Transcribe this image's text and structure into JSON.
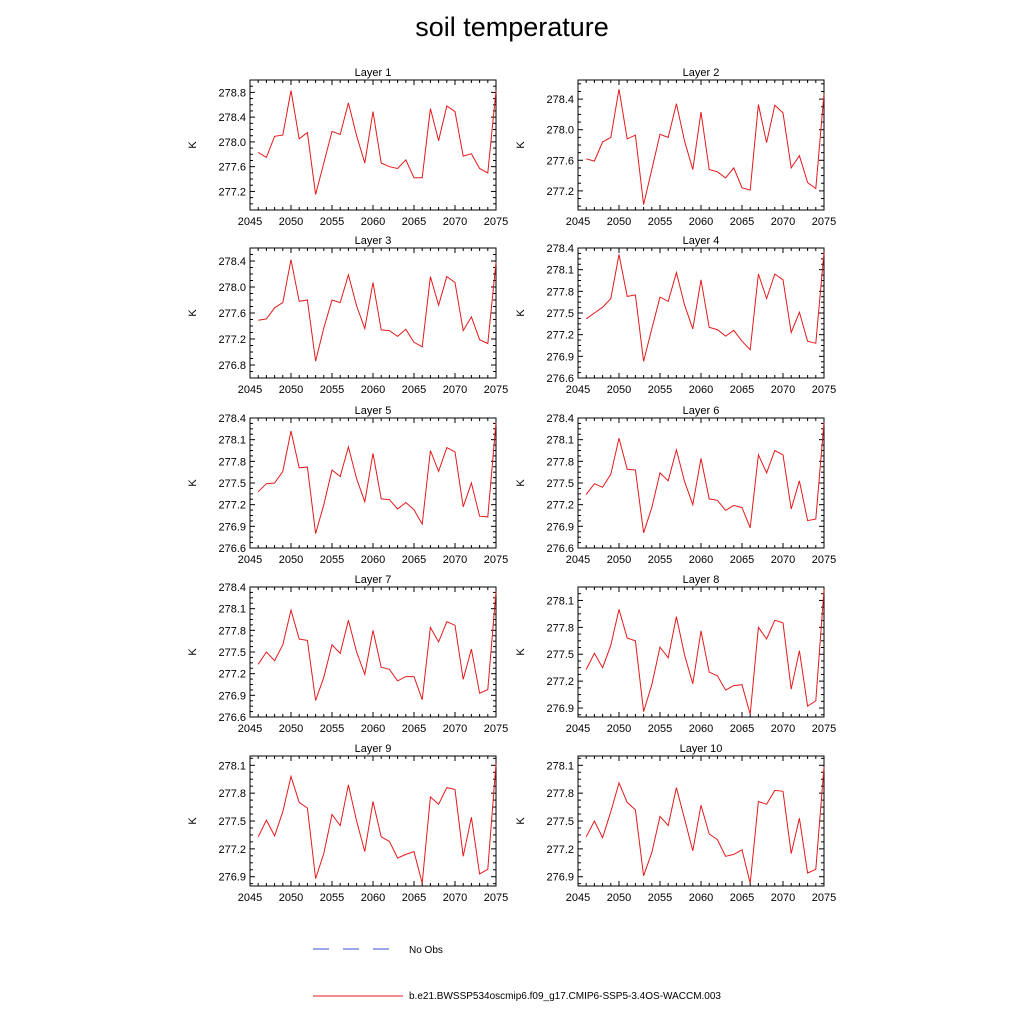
{
  "page": {
    "title": "soil temperature"
  },
  "legend": {
    "entries": [
      {
        "label": "No Obs",
        "color": "#3b4fd6",
        "style": "dashed"
      },
      {
        "label": "b.e21.BWSSP534oscmip6.f09_g17.CMIP6-SSP5-3.4OS-WACCM.003",
        "color": "#e31a1c",
        "style": "solid"
      }
    ]
  },
  "chart_data": [
    {
      "type": "line",
      "title": "Layer 1",
      "xlabel": "",
      "ylabel": "K",
      "xlim": [
        2045,
        2075
      ],
      "ylim": [
        276.9,
        279.0
      ],
      "xticks": [
        2045,
        2050,
        2055,
        2060,
        2065,
        2070,
        2075
      ],
      "yticks": [
        "277.2",
        "277.6",
        "278.0",
        "278.4",
        "278.8"
      ],
      "series": [
        {
          "color": "#e31a1c",
          "x": [
            2046,
            2047,
            2048,
            2049,
            2050,
            2051,
            2052,
            2053,
            2054,
            2055,
            2056,
            2057,
            2058,
            2059,
            2060,
            2061,
            2062,
            2063,
            2064,
            2065,
            2066,
            2067,
            2068,
            2069,
            2070,
            2071,
            2072,
            2073,
            2074,
            2075
          ],
          "values": [
            277.83,
            277.75,
            278.09,
            278.11,
            278.83,
            278.05,
            278.15,
            277.15,
            277.66,
            278.17,
            278.12,
            278.63,
            278.1,
            277.66,
            278.49,
            277.66,
            277.6,
            277.57,
            277.71,
            277.42,
            277.42,
            278.54,
            278.02,
            278.58,
            278.49,
            277.77,
            277.81,
            277.57,
            277.5,
            278.83
          ]
        }
      ]
    },
    {
      "type": "line",
      "title": "Layer 2",
      "xlabel": "",
      "ylabel": "K",
      "xlim": [
        2045,
        2075
      ],
      "ylim": [
        276.95,
        278.65
      ],
      "xticks": [
        2045,
        2050,
        2055,
        2060,
        2065,
        2070,
        2075
      ],
      "yticks": [
        "277.2",
        "277.6",
        "278.0",
        "278.4"
      ],
      "series": [
        {
          "color": "#e31a1c",
          "x": [
            2046,
            2047,
            2048,
            2049,
            2050,
            2051,
            2052,
            2053,
            2054,
            2055,
            2056,
            2057,
            2058,
            2059,
            2060,
            2061,
            2062,
            2063,
            2064,
            2065,
            2066,
            2067,
            2068,
            2069,
            2070,
            2071,
            2072,
            2073,
            2074,
            2075
          ],
          "values": [
            277.62,
            277.59,
            277.84,
            277.9,
            278.53,
            277.88,
            277.93,
            277.02,
            277.48,
            277.94,
            277.9,
            278.34,
            277.85,
            277.48,
            278.23,
            277.48,
            277.45,
            277.37,
            277.5,
            277.24,
            277.21,
            278.33,
            277.83,
            278.32,
            278.22,
            277.5,
            277.66,
            277.31,
            277.23,
            278.47
          ]
        }
      ]
    },
    {
      "type": "line",
      "title": "Layer 3",
      "xlabel": "",
      "ylabel": "K",
      "xlim": [
        2045,
        2075
      ],
      "ylim": [
        276.6,
        278.6
      ],
      "xticks": [
        2045,
        2050,
        2055,
        2060,
        2065,
        2070,
        2075
      ],
      "yticks": [
        "276.8",
        "277.2",
        "277.6",
        "278.0",
        "278.4"
      ],
      "series": [
        {
          "color": "#e31a1c",
          "x": [
            2046,
            2047,
            2048,
            2049,
            2050,
            2051,
            2052,
            2053,
            2054,
            2055,
            2056,
            2057,
            2058,
            2059,
            2060,
            2061,
            2062,
            2063,
            2064,
            2065,
            2066,
            2067,
            2068,
            2069,
            2070,
            2071,
            2072,
            2073,
            2074,
            2075
          ],
          "values": [
            277.49,
            277.51,
            277.68,
            277.76,
            278.42,
            277.78,
            277.8,
            276.86,
            277.37,
            277.8,
            277.76,
            278.19,
            277.71,
            277.36,
            278.07,
            277.34,
            277.33,
            277.24,
            277.35,
            277.15,
            277.08,
            278.16,
            277.72,
            278.16,
            278.07,
            277.33,
            277.54,
            277.19,
            277.13,
            278.38
          ]
        }
      ]
    },
    {
      "type": "line",
      "title": "Layer 4",
      "xlabel": "",
      "ylabel": "K",
      "xlim": [
        2045,
        2075
      ],
      "ylim": [
        276.6,
        278.4
      ],
      "xticks": [
        2045,
        2050,
        2055,
        2060,
        2065,
        2070,
        2075
      ],
      "yticks": [
        "276.6",
        "276.9",
        "277.2",
        "277.5",
        "277.8",
        "278.1",
        "278.4"
      ],
      "series": [
        {
          "color": "#e31a1c",
          "x": [
            2046,
            2047,
            2048,
            2049,
            2050,
            2051,
            2052,
            2053,
            2054,
            2055,
            2056,
            2057,
            2058,
            2059,
            2060,
            2061,
            2062,
            2063,
            2064,
            2065,
            2066,
            2067,
            2068,
            2069,
            2070,
            2071,
            2072,
            2073,
            2074,
            2075
          ],
          "values": [
            277.42,
            277.5,
            277.58,
            277.7,
            278.31,
            277.73,
            277.75,
            276.83,
            277.28,
            277.72,
            277.66,
            278.06,
            277.61,
            277.28,
            277.96,
            277.3,
            277.27,
            277.18,
            277.26,
            277.11,
            276.99,
            278.04,
            277.7,
            278.04,
            277.96,
            277.23,
            277.51,
            277.11,
            277.08,
            278.34
          ]
        }
      ]
    },
    {
      "type": "line",
      "title": "Layer 5",
      "xlabel": "",
      "ylabel": "K",
      "xlim": [
        2045,
        2075
      ],
      "ylim": [
        276.6,
        278.4
      ],
      "xticks": [
        2045,
        2050,
        2055,
        2060,
        2065,
        2070,
        2075
      ],
      "yticks": [
        "276.6",
        "276.9",
        "277.2",
        "277.5",
        "277.8",
        "278.1",
        "278.4"
      ],
      "series": [
        {
          "color": "#e31a1c",
          "x": [
            2046,
            2047,
            2048,
            2049,
            2050,
            2051,
            2052,
            2053,
            2054,
            2055,
            2056,
            2057,
            2058,
            2059,
            2060,
            2061,
            2062,
            2063,
            2064,
            2065,
            2066,
            2067,
            2068,
            2069,
            2070,
            2071,
            2072,
            2073,
            2074,
            2075
          ],
          "values": [
            277.38,
            277.49,
            277.5,
            277.66,
            278.22,
            277.71,
            277.72,
            276.8,
            277.2,
            277.68,
            277.59,
            278.0,
            277.56,
            277.24,
            277.91,
            277.28,
            277.27,
            277.14,
            277.23,
            277.13,
            276.93,
            277.95,
            277.66,
            277.99,
            277.93,
            277.17,
            277.5,
            277.04,
            277.03,
            278.34
          ]
        }
      ]
    },
    {
      "type": "line",
      "title": "Layer 6",
      "xlabel": "",
      "ylabel": "K",
      "xlim": [
        2045,
        2075
      ],
      "ylim": [
        276.6,
        278.4
      ],
      "xticks": [
        2045,
        2050,
        2055,
        2060,
        2065,
        2070,
        2075
      ],
      "yticks": [
        "276.6",
        "276.9",
        "277.2",
        "277.5",
        "277.8",
        "278.1",
        "278.4"
      ],
      "series": [
        {
          "color": "#e31a1c",
          "x": [
            2046,
            2047,
            2048,
            2049,
            2050,
            2051,
            2052,
            2053,
            2054,
            2055,
            2056,
            2057,
            2058,
            2059,
            2060,
            2061,
            2062,
            2063,
            2064,
            2065,
            2066,
            2067,
            2068,
            2069,
            2070,
            2071,
            2072,
            2073,
            2074,
            2075
          ],
          "values": [
            277.34,
            277.49,
            277.44,
            277.62,
            278.12,
            277.69,
            277.68,
            276.81,
            277.16,
            277.64,
            277.53,
            277.96,
            277.52,
            277.2,
            277.84,
            277.28,
            277.26,
            277.12,
            277.19,
            277.16,
            276.88,
            277.89,
            277.64,
            277.95,
            277.89,
            277.14,
            277.53,
            276.98,
            277.0,
            278.34
          ]
        }
      ]
    },
    {
      "type": "line",
      "title": "Layer 7",
      "xlabel": "",
      "ylabel": "K",
      "xlim": [
        2045,
        2075
      ],
      "ylim": [
        276.6,
        278.4
      ],
      "xticks": [
        2045,
        2050,
        2055,
        2060,
        2065,
        2070,
        2075
      ],
      "yticks": [
        "276.6",
        "276.9",
        "277.2",
        "277.5",
        "277.8",
        "278.1",
        "278.4"
      ],
      "series": [
        {
          "color": "#e31a1c",
          "x": [
            2046,
            2047,
            2048,
            2049,
            2050,
            2051,
            2052,
            2053,
            2054,
            2055,
            2056,
            2057,
            2058,
            2059,
            2060,
            2061,
            2062,
            2063,
            2064,
            2065,
            2066,
            2067,
            2068,
            2069,
            2070,
            2071,
            2072,
            2073,
            2074,
            2075
          ],
          "values": [
            277.33,
            277.5,
            277.38,
            277.6,
            278.08,
            277.68,
            277.66,
            276.83,
            277.15,
            277.6,
            277.48,
            277.94,
            277.5,
            277.19,
            277.8,
            277.29,
            277.26,
            277.1,
            277.16,
            277.16,
            276.84,
            277.84,
            277.64,
            277.92,
            277.87,
            277.12,
            277.54,
            276.93,
            276.98,
            278.34
          ]
        }
      ]
    },
    {
      "type": "line",
      "title": "Layer 8",
      "xlabel": "",
      "ylabel": "K",
      "xlim": [
        2045,
        2075
      ],
      "ylim": [
        276.8,
        278.25
      ],
      "xticks": [
        2045,
        2050,
        2055,
        2060,
        2065,
        2070,
        2075
      ],
      "yticks": [
        "276.9",
        "277.2",
        "277.5",
        "277.8",
        "278.1"
      ],
      "series": [
        {
          "color": "#e31a1c",
          "x": [
            2046,
            2047,
            2048,
            2049,
            2050,
            2051,
            2052,
            2053,
            2054,
            2055,
            2056,
            2057,
            2058,
            2059,
            2060,
            2061,
            2062,
            2063,
            2064,
            2065,
            2066,
            2067,
            2068,
            2069,
            2070,
            2071,
            2072,
            2073,
            2074,
            2075
          ],
          "values": [
            277.33,
            277.51,
            277.35,
            277.6,
            278.0,
            277.68,
            277.65,
            276.86,
            277.16,
            277.58,
            277.46,
            277.92,
            277.49,
            277.17,
            277.76,
            277.3,
            277.26,
            277.1,
            277.15,
            277.16,
            276.83,
            277.8,
            277.67,
            277.88,
            277.85,
            277.11,
            277.54,
            276.92,
            276.98,
            278.22
          ]
        }
      ]
    },
    {
      "type": "line",
      "title": "Layer 9",
      "xlabel": "",
      "ylabel": "K",
      "xlim": [
        2045,
        2075
      ],
      "ylim": [
        276.8,
        278.2
      ],
      "xticks": [
        2045,
        2050,
        2055,
        2060,
        2065,
        2070,
        2075
      ],
      "yticks": [
        "276.9",
        "277.2",
        "277.5",
        "277.8",
        "278.1"
      ],
      "series": [
        {
          "color": "#e31a1c",
          "x": [
            2046,
            2047,
            2048,
            2049,
            2050,
            2051,
            2052,
            2053,
            2054,
            2055,
            2056,
            2057,
            2058,
            2059,
            2060,
            2061,
            2062,
            2063,
            2064,
            2065,
            2066,
            2067,
            2068,
            2069,
            2070,
            2071,
            2072,
            2073,
            2074,
            2075
          ],
          "values": [
            277.33,
            277.51,
            277.34,
            277.6,
            277.98,
            277.7,
            277.64,
            276.88,
            277.15,
            277.57,
            277.45,
            277.89,
            277.5,
            277.17,
            277.71,
            277.33,
            277.28,
            277.1,
            277.14,
            277.17,
            276.83,
            277.76,
            277.68,
            277.86,
            277.84,
            277.12,
            277.54,
            276.93,
            276.98,
            278.12
          ]
        }
      ]
    },
    {
      "type": "line",
      "title": "Layer 10",
      "xlabel": "",
      "ylabel": "K",
      "xlim": [
        2045,
        2075
      ],
      "ylim": [
        276.8,
        278.2
      ],
      "xticks": [
        2045,
        2050,
        2055,
        2060,
        2065,
        2070,
        2075
      ],
      "yticks": [
        "276.9",
        "277.2",
        "277.5",
        "277.8",
        "278.1"
      ],
      "series": [
        {
          "color": "#e31a1c",
          "x": [
            2046,
            2047,
            2048,
            2049,
            2050,
            2051,
            2052,
            2053,
            2054,
            2055,
            2056,
            2057,
            2058,
            2059,
            2060,
            2061,
            2062,
            2063,
            2064,
            2065,
            2066,
            2067,
            2068,
            2069,
            2070,
            2071,
            2072,
            2073,
            2074,
            2075
          ],
          "values": [
            277.33,
            277.5,
            277.32,
            277.6,
            277.91,
            277.7,
            277.62,
            276.91,
            277.16,
            277.55,
            277.45,
            277.86,
            277.52,
            277.18,
            277.67,
            277.36,
            277.3,
            277.12,
            277.14,
            277.19,
            276.83,
            277.71,
            277.68,
            277.83,
            277.82,
            277.15,
            277.53,
            276.94,
            276.98,
            278.08
          ]
        }
      ]
    }
  ]
}
